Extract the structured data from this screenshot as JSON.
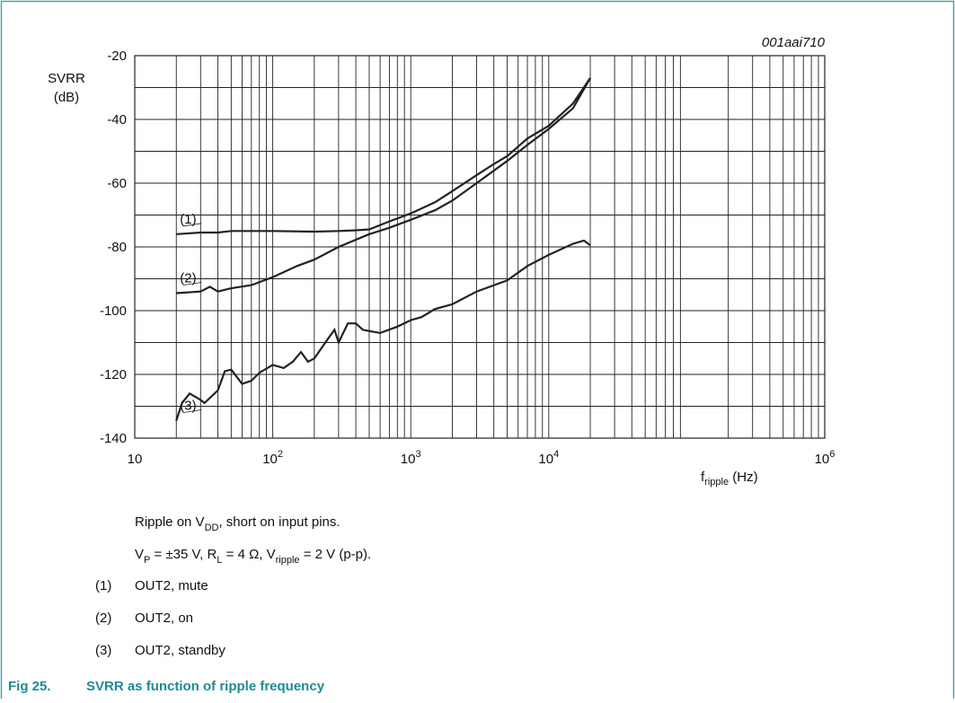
{
  "chart_data": {
    "type": "line",
    "code": "001aai710",
    "ylabel": [
      "SVRR",
      "(dB)"
    ],
    "xlabel": [
      {
        "text": "f"
      },
      {
        "sub": "ripple"
      },
      {
        "text": " (Hz)"
      }
    ],
    "xscale": "log",
    "xlim": [
      10,
      1000000
    ],
    "xticks": [
      10,
      {
        "value": 100,
        "label": "10",
        "exponent": "2"
      },
      {
        "value": 1000,
        "label": "10",
        "exponent": "3"
      },
      {
        "value": 10000,
        "label": "10",
        "exponent": "4"
      },
      {
        "value": 1000000,
        "label": "10",
        "exponent": "6"
      }
    ],
    "x_minor_grid": true,
    "ylim": [
      -140,
      -20
    ],
    "yticks": [
      -20,
      -40,
      -60,
      -80,
      -100,
      -120,
      -140
    ],
    "y_minor_ticks": [
      -30,
      -50,
      -70,
      -90,
      -110,
      -130
    ],
    "grid": true,
    "series": [
      {
        "name": "OUT2, mute",
        "label": "(1)",
        "color": "#222222",
        "x": [
          20,
          30,
          40,
          50,
          100,
          200,
          300,
          400,
          500,
          700,
          1000,
          1500,
          2000,
          3000,
          4000,
          5000,
          7000,
          10000,
          15000,
          20000
        ],
        "values": [
          -76,
          -75.5,
          -75.5,
          -75,
          -75,
          -75.2,
          -75,
          -74.8,
          -74.5,
          -72,
          -69.5,
          -66,
          -62.5,
          -57.5,
          -54,
          -51.5,
          -46,
          -42,
          -35,
          -27
        ]
      },
      {
        "name": "OUT2, on",
        "label": "(2)",
        "color": "#222222",
        "x": [
          20,
          30,
          35,
          40,
          50,
          70,
          100,
          150,
          200,
          300,
          500,
          700,
          1000,
          1500,
          2000,
          3000,
          5000,
          7000,
          10000,
          15000,
          20000
        ],
        "values": [
          -94.5,
          -94,
          -92.5,
          -94,
          -93,
          -92,
          -89.5,
          -86,
          -84,
          -80,
          -76,
          -74,
          -71.5,
          -68.5,
          -65.5,
          -60,
          -53,
          -48,
          -43,
          -36.5,
          -27
        ]
      },
      {
        "name": "OUT2, standby",
        "label": "(3)",
        "color": "#222222",
        "x": [
          20,
          22,
          25,
          30,
          32,
          40,
          45,
          50,
          60,
          70,
          80,
          100,
          120,
          140,
          160,
          180,
          200,
          250,
          280,
          300,
          350,
          400,
          450,
          600,
          800,
          1000,
          1200,
          1500,
          2000,
          3000,
          5000,
          7000,
          10000,
          15000,
          18000,
          20000
        ],
        "values": [
          -134.5,
          -129,
          -126,
          -128,
          -129,
          -125,
          -119,
          -118.5,
          -123,
          -122,
          -119.5,
          -117,
          -118,
          -116,
          -113,
          -116,
          -115,
          -109,
          -106,
          -110,
          -104,
          -104,
          -106,
          -107,
          -105,
          -103,
          -102,
          -99.5,
          -98,
          -94,
          -90.5,
          -86,
          -82.5,
          -79,
          -78,
          -79.5
        ]
      }
    ],
    "notes": [
      [
        {
          "text": "Ripple on V"
        },
        {
          "sub": "DD"
        },
        {
          "text": ", short on input pins."
        }
      ],
      [
        {
          "text": "V"
        },
        {
          "sub": "P"
        },
        {
          "text": " = ±35 V, R"
        },
        {
          "sub": "L"
        },
        {
          "text": " = 4 Ω, V"
        },
        {
          "sub": "ripple"
        },
        {
          "text": " = 2 V (p-p)."
        }
      ]
    ],
    "caption": {
      "number": "Fig 25.",
      "title": "SVRR as function of ripple frequency"
    }
  }
}
